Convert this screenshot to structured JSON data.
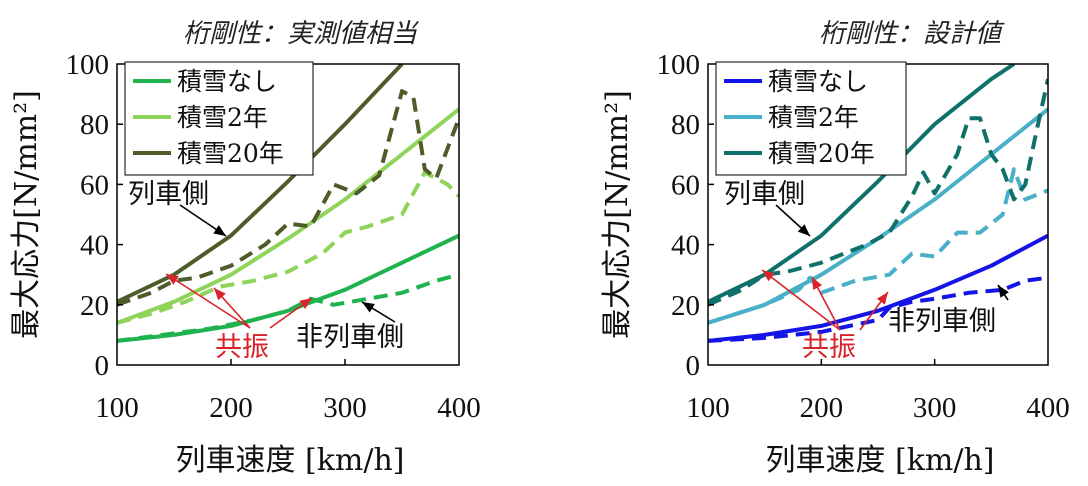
{
  "chart_data": [
    {
      "type": "line",
      "title": "桁剛性：実測値相当",
      "xlabel": "列車速度 [km/h]",
      "ylabel": "最大応力[N/mm²]",
      "xlim": [
        100,
        400
      ],
      "ylim": [
        0,
        100
      ],
      "xticks": [
        "100",
        "200",
        "300",
        "400"
      ],
      "yticks": [
        "0",
        "20",
        "40",
        "60",
        "80",
        "100"
      ],
      "grid": false,
      "legend": "top-left",
      "legend_entries": [
        "積雪なし",
        "積雪2年",
        "積雪20年"
      ],
      "series": [
        {
          "name": "積雪なし",
          "style": "solid",
          "color": "#1eb34e",
          "x": [
            100,
            150,
            200,
            250,
            300,
            350,
            400
          ],
          "y": [
            8,
            10,
            13,
            18,
            25,
            34,
            43
          ]
        },
        {
          "name": "積雪2年",
          "style": "solid",
          "color": "#8fd45a",
          "x": [
            100,
            150,
            200,
            250,
            300,
            350,
            400
          ],
          "y": [
            14,
            21,
            30,
            42,
            55,
            70,
            85
          ]
        },
        {
          "name": "積雪20年",
          "style": "solid",
          "color": "#4e5c2a",
          "x": [
            100,
            150,
            200,
            250,
            300,
            350
          ],
          "y": [
            21,
            30,
            43,
            61,
            80,
            100
          ]
        },
        {
          "name": "積雪なし",
          "style": "dashed",
          "color": "#1eb34e",
          "x": [
            100,
            140,
            180,
            220,
            250,
            270,
            290,
            320,
            350,
            380,
            400
          ],
          "y": [
            8,
            10,
            12,
            15,
            18,
            22,
            20,
            22,
            24,
            28,
            30
          ]
        },
        {
          "name": "積雪2年",
          "style": "dashed",
          "color": "#8fd45a",
          "x": [
            100,
            130,
            160,
            190,
            220,
            250,
            280,
            300,
            320,
            350,
            370,
            390,
            400
          ],
          "y": [
            14,
            17,
            21,
            26,
            28,
            31,
            37,
            44,
            46,
            50,
            64,
            60,
            56
          ]
        },
        {
          "name": "積雪20年",
          "style": "dashed",
          "color": "#4e5c2a",
          "x": [
            100,
            130,
            150,
            170,
            200,
            230,
            250,
            270,
            290,
            310,
            330,
            350,
            360,
            370,
            380,
            400
          ],
          "y": [
            20,
            24,
            28,
            29,
            33,
            40,
            47,
            46,
            60,
            57,
            63,
            91,
            89,
            65,
            62,
            82
          ]
        }
      ],
      "annotations": [
        "列車側",
        "非列車側",
        "共振"
      ]
    },
    {
      "type": "line",
      "title": "桁剛性：設計値",
      "xlabel": "列車速度 [km/h]",
      "ylabel": "最大応力[N/mm²]",
      "xlim": [
        100,
        400
      ],
      "ylim": [
        0,
        100
      ],
      "xticks": [
        "100",
        "200",
        "300",
        "400"
      ],
      "yticks": [
        "0",
        "20",
        "40",
        "60",
        "80",
        "100"
      ],
      "grid": false,
      "legend": "top-left",
      "legend_entries": [
        "積雪なし",
        "積雪2年",
        "積雪20年"
      ],
      "series": [
        {
          "name": "積雪なし",
          "style": "solid",
          "color": "#1414e6",
          "x": [
            100,
            150,
            200,
            250,
            300,
            350,
            400
          ],
          "y": [
            8,
            10,
            13,
            18,
            25,
            33,
            43
          ]
        },
        {
          "name": "積雪2年",
          "style": "solid",
          "color": "#4ab0c8",
          "x": [
            100,
            150,
            200,
            250,
            300,
            350,
            400
          ],
          "y": [
            14,
            20,
            30,
            42,
            55,
            70,
            85
          ]
        },
        {
          "name": "積雪20年",
          "style": "solid",
          "color": "#10706a",
          "x": [
            100,
            150,
            200,
            250,
            300,
            350,
            370
          ],
          "y": [
            21,
            30,
            43,
            61,
            80,
            95,
            100
          ]
        },
        {
          "name": "積雪なし",
          "style": "dashed",
          "color": "#1414e6",
          "x": [
            100,
            150,
            200,
            250,
            260,
            280,
            300,
            330,
            360,
            380,
            400
          ],
          "y": [
            8,
            9,
            11,
            15,
            19,
            21,
            22,
            24,
            25,
            28,
            29
          ]
        },
        {
          "name": "積雪2年",
          "style": "dashed",
          "color": "#4ab0c8",
          "x": [
            100,
            150,
            180,
            190,
            200,
            230,
            260,
            280,
            300,
            320,
            340,
            360,
            370,
            380,
            400
          ],
          "y": [
            14,
            20,
            25,
            29,
            24,
            28,
            30,
            37,
            36,
            44,
            44,
            50,
            65,
            55,
            58
          ]
        },
        {
          "name": "積雪20年",
          "style": "dashed",
          "color": "#10706a",
          "x": [
            100,
            130,
            150,
            170,
            200,
            220,
            240,
            260,
            280,
            290,
            300,
            320,
            330,
            340,
            350,
            360,
            370,
            380,
            390,
            400
          ],
          "y": [
            20,
            25,
            30,
            31,
            34,
            37,
            40,
            44,
            56,
            64,
            57,
            70,
            82,
            82,
            70,
            65,
            55,
            60,
            78,
            95
          ]
        }
      ],
      "annotations": [
        "列車側",
        "非列車側",
        "共振"
      ]
    }
  ]
}
